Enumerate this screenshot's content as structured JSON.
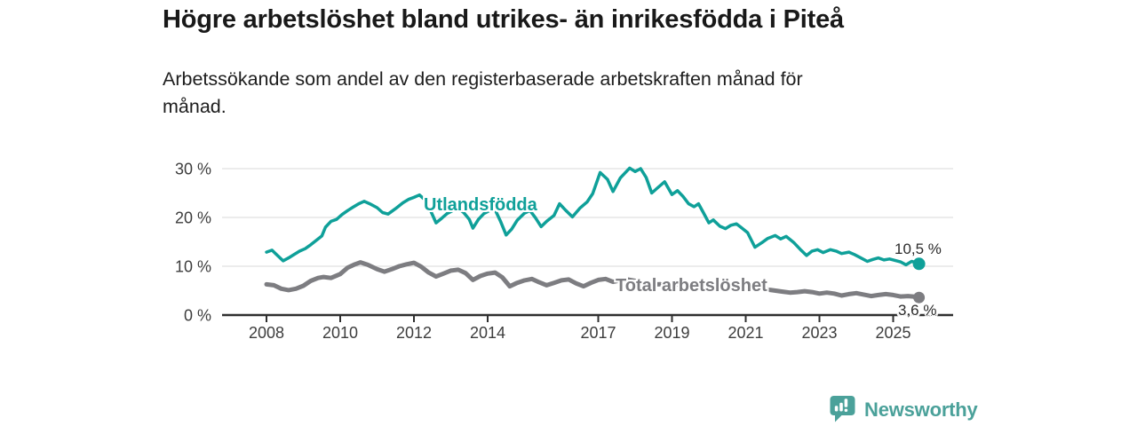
{
  "chart_data": {
    "type": "line",
    "title": "Högre arbetslöshet bland utrikes- än inrikesfödda i Piteå",
    "subtitle": "Arbetssökande som andel av den registerbaserade arbetskraften månad för månad.",
    "subtitle_lines": [
      "Arbetssökande som andel av den registerbaserade arbetskraften månad för",
      "månad."
    ],
    "xlabel": "",
    "ylabel": "",
    "x_domain": [
      2007.9,
      2026.6
    ],
    "ylim": [
      0,
      30
    ],
    "grid": "horizontal",
    "legend_position": "inline-labels",
    "x_ticks": [
      {
        "value": 2008,
        "label": "2008"
      },
      {
        "value": 2010,
        "label": "2010"
      },
      {
        "value": 2012,
        "label": "2012"
      },
      {
        "value": 2014,
        "label": "2014"
      },
      {
        "value": 2017,
        "label": "2017"
      },
      {
        "value": 2019,
        "label": "2019"
      },
      {
        "value": 2021,
        "label": "2021"
      },
      {
        "value": 2023,
        "label": "2023"
      },
      {
        "value": 2025,
        "label": "2025"
      }
    ],
    "y_ticks": [
      {
        "value": 0,
        "label": "0 %"
      },
      {
        "value": 10,
        "label": "10 %"
      },
      {
        "value": 20,
        "label": "20 %"
      },
      {
        "value": 30,
        "label": "30 %"
      }
    ],
    "series": [
      {
        "name": "Utlandsfödda",
        "color": "#0fa099",
        "end_label": "10,5 %",
        "end_value": 10.5,
        "points": [
          [
            2008.0,
            12.9
          ],
          [
            2008.15,
            13.3
          ],
          [
            2008.3,
            12.2
          ],
          [
            2008.45,
            11.1
          ],
          [
            2008.6,
            11.7
          ],
          [
            2008.75,
            12.4
          ],
          [
            2008.9,
            13.1
          ],
          [
            2009.05,
            13.6
          ],
          [
            2009.2,
            14.4
          ],
          [
            2009.35,
            15.3
          ],
          [
            2009.5,
            16.2
          ],
          [
            2009.6,
            18.0
          ],
          [
            2009.75,
            19.2
          ],
          [
            2009.9,
            19.6
          ],
          [
            2010.05,
            20.6
          ],
          [
            2010.2,
            21.4
          ],
          [
            2010.35,
            22.1
          ],
          [
            2010.5,
            22.8
          ],
          [
            2010.65,
            23.3
          ],
          [
            2010.8,
            22.8
          ],
          [
            2011.0,
            22.0
          ],
          [
            2011.15,
            21.0
          ],
          [
            2011.3,
            20.7
          ],
          [
            2011.5,
            21.8
          ],
          [
            2011.7,
            23.0
          ],
          [
            2011.85,
            23.7
          ],
          [
            2012.0,
            24.1
          ],
          [
            2012.15,
            24.6
          ],
          [
            2012.3,
            23.6
          ],
          [
            2012.45,
            21.4
          ],
          [
            2012.6,
            18.9
          ],
          [
            2012.75,
            19.8
          ],
          [
            2012.9,
            20.8
          ],
          [
            2013.05,
            21.4
          ],
          [
            2013.2,
            21.9
          ],
          [
            2013.35,
            21.0
          ],
          [
            2013.5,
            19.6
          ],
          [
            2013.6,
            17.8
          ],
          [
            2013.75,
            19.6
          ],
          [
            2013.9,
            20.8
          ],
          [
            2014.05,
            21.4
          ],
          [
            2014.2,
            21.6
          ],
          [
            2014.35,
            19.2
          ],
          [
            2014.5,
            16.4
          ],
          [
            2014.65,
            17.6
          ],
          [
            2014.8,
            19.4
          ],
          [
            2015.0,
            20.9
          ],
          [
            2015.15,
            21.4
          ],
          [
            2015.3,
            19.9
          ],
          [
            2015.45,
            18.1
          ],
          [
            2015.6,
            19.2
          ],
          [
            2015.8,
            20.4
          ],
          [
            2015.95,
            22.8
          ],
          [
            2016.1,
            21.6
          ],
          [
            2016.3,
            20.1
          ],
          [
            2016.5,
            21.9
          ],
          [
            2016.7,
            23.2
          ],
          [
            2016.85,
            24.9
          ],
          [
            2017.05,
            29.2
          ],
          [
            2017.25,
            27.8
          ],
          [
            2017.4,
            25.3
          ],
          [
            2017.6,
            28.1
          ],
          [
            2017.85,
            30.1
          ],
          [
            2018.0,
            29.4
          ],
          [
            2018.15,
            30.0
          ],
          [
            2018.3,
            28.2
          ],
          [
            2018.45,
            25.0
          ],
          [
            2018.6,
            26.0
          ],
          [
            2018.8,
            27.3
          ],
          [
            2019.0,
            24.7
          ],
          [
            2019.15,
            25.5
          ],
          [
            2019.3,
            24.3
          ],
          [
            2019.45,
            22.8
          ],
          [
            2019.6,
            22.2
          ],
          [
            2019.72,
            22.8
          ],
          [
            2019.85,
            21.0
          ],
          [
            2020.0,
            18.9
          ],
          [
            2020.12,
            19.5
          ],
          [
            2020.3,
            18.2
          ],
          [
            2020.45,
            17.7
          ],
          [
            2020.6,
            18.4
          ],
          [
            2020.75,
            18.7
          ],
          [
            2020.9,
            17.8
          ],
          [
            2021.05,
            16.9
          ],
          [
            2021.25,
            13.9
          ],
          [
            2021.45,
            14.9
          ],
          [
            2021.6,
            15.7
          ],
          [
            2021.8,
            16.3
          ],
          [
            2021.95,
            15.6
          ],
          [
            2022.1,
            16.1
          ],
          [
            2022.3,
            14.9
          ],
          [
            2022.5,
            13.3
          ],
          [
            2022.65,
            12.2
          ],
          [
            2022.8,
            13.1
          ],
          [
            2022.95,
            13.4
          ],
          [
            2023.1,
            12.8
          ],
          [
            2023.3,
            13.4
          ],
          [
            2023.45,
            13.1
          ],
          [
            2023.6,
            12.6
          ],
          [
            2023.8,
            12.9
          ],
          [
            2023.95,
            12.4
          ],
          [
            2024.1,
            11.8
          ],
          [
            2024.3,
            11.0
          ],
          [
            2024.45,
            11.4
          ],
          [
            2024.6,
            11.7
          ],
          [
            2024.75,
            11.3
          ],
          [
            2024.9,
            11.5
          ],
          [
            2025.05,
            11.2
          ],
          [
            2025.2,
            10.9
          ],
          [
            2025.35,
            10.3
          ],
          [
            2025.5,
            11.0
          ],
          [
            2025.6,
            10.8
          ],
          [
            2025.7,
            10.5
          ]
        ]
      },
      {
        "name": "Total arbetslöshet",
        "color": "#7d7d81",
        "end_label": "3,6 %",
        "end_value": 3.6,
        "points": [
          [
            2008.0,
            6.3
          ],
          [
            2008.2,
            6.1
          ],
          [
            2008.4,
            5.4
          ],
          [
            2008.6,
            5.1
          ],
          [
            2008.8,
            5.4
          ],
          [
            2009.0,
            6.0
          ],
          [
            2009.2,
            7.0
          ],
          [
            2009.4,
            7.6
          ],
          [
            2009.55,
            7.8
          ],
          [
            2009.75,
            7.6
          ],
          [
            2010.0,
            8.4
          ],
          [
            2010.2,
            9.7
          ],
          [
            2010.4,
            10.4
          ],
          [
            2010.55,
            10.8
          ],
          [
            2010.75,
            10.3
          ],
          [
            2011.0,
            9.4
          ],
          [
            2011.2,
            8.9
          ],
          [
            2011.4,
            9.4
          ],
          [
            2011.6,
            10.0
          ],
          [
            2011.8,
            10.4
          ],
          [
            2012.0,
            10.7
          ],
          [
            2012.2,
            9.9
          ],
          [
            2012.4,
            8.7
          ],
          [
            2012.6,
            7.9
          ],
          [
            2012.8,
            8.5
          ],
          [
            2013.0,
            9.1
          ],
          [
            2013.2,
            9.3
          ],
          [
            2013.4,
            8.6
          ],
          [
            2013.6,
            7.2
          ],
          [
            2013.8,
            8.0
          ],
          [
            2014.0,
            8.5
          ],
          [
            2014.2,
            8.7
          ],
          [
            2014.4,
            7.7
          ],
          [
            2014.6,
            5.9
          ],
          [
            2014.8,
            6.6
          ],
          [
            2015.0,
            7.1
          ],
          [
            2015.2,
            7.4
          ],
          [
            2015.4,
            6.7
          ],
          [
            2015.6,
            6.1
          ],
          [
            2015.8,
            6.6
          ],
          [
            2016.0,
            7.1
          ],
          [
            2016.2,
            7.3
          ],
          [
            2016.4,
            6.5
          ],
          [
            2016.6,
            5.9
          ],
          [
            2016.8,
            6.6
          ],
          [
            2017.0,
            7.2
          ],
          [
            2017.2,
            7.4
          ],
          [
            2017.4,
            6.8
          ],
          [
            2017.6,
            7.1
          ],
          [
            2017.8,
            7.3
          ],
          [
            2018.0,
            7.0
          ],
          [
            2018.3,
            6.6
          ],
          [
            2018.6,
            6.3
          ],
          [
            2019.0,
            6.4
          ],
          [
            2019.4,
            6.1
          ],
          [
            2019.8,
            5.9
          ],
          [
            2020.1,
            6.6
          ],
          [
            2020.5,
            6.4
          ],
          [
            2020.9,
            6.0
          ],
          [
            2021.3,
            5.5
          ],
          [
            2021.7,
            5.1
          ],
          [
            2022.0,
            4.8
          ],
          [
            2022.2,
            4.6
          ],
          [
            2022.4,
            4.7
          ],
          [
            2022.6,
            4.9
          ],
          [
            2022.8,
            4.7
          ],
          [
            2023.0,
            4.4
          ],
          [
            2023.2,
            4.6
          ],
          [
            2023.4,
            4.4
          ],
          [
            2023.6,
            4.0
          ],
          [
            2023.8,
            4.3
          ],
          [
            2024.0,
            4.5
          ],
          [
            2024.2,
            4.2
          ],
          [
            2024.4,
            3.9
          ],
          [
            2024.6,
            4.1
          ],
          [
            2024.8,
            4.3
          ],
          [
            2025.0,
            4.1
          ],
          [
            2025.2,
            3.8
          ],
          [
            2025.4,
            3.9
          ],
          [
            2025.55,
            3.8
          ],
          [
            2025.7,
            3.6
          ]
        ]
      }
    ]
  },
  "logo": {
    "text": "Newsworthy",
    "color": "#4ba19a"
  }
}
